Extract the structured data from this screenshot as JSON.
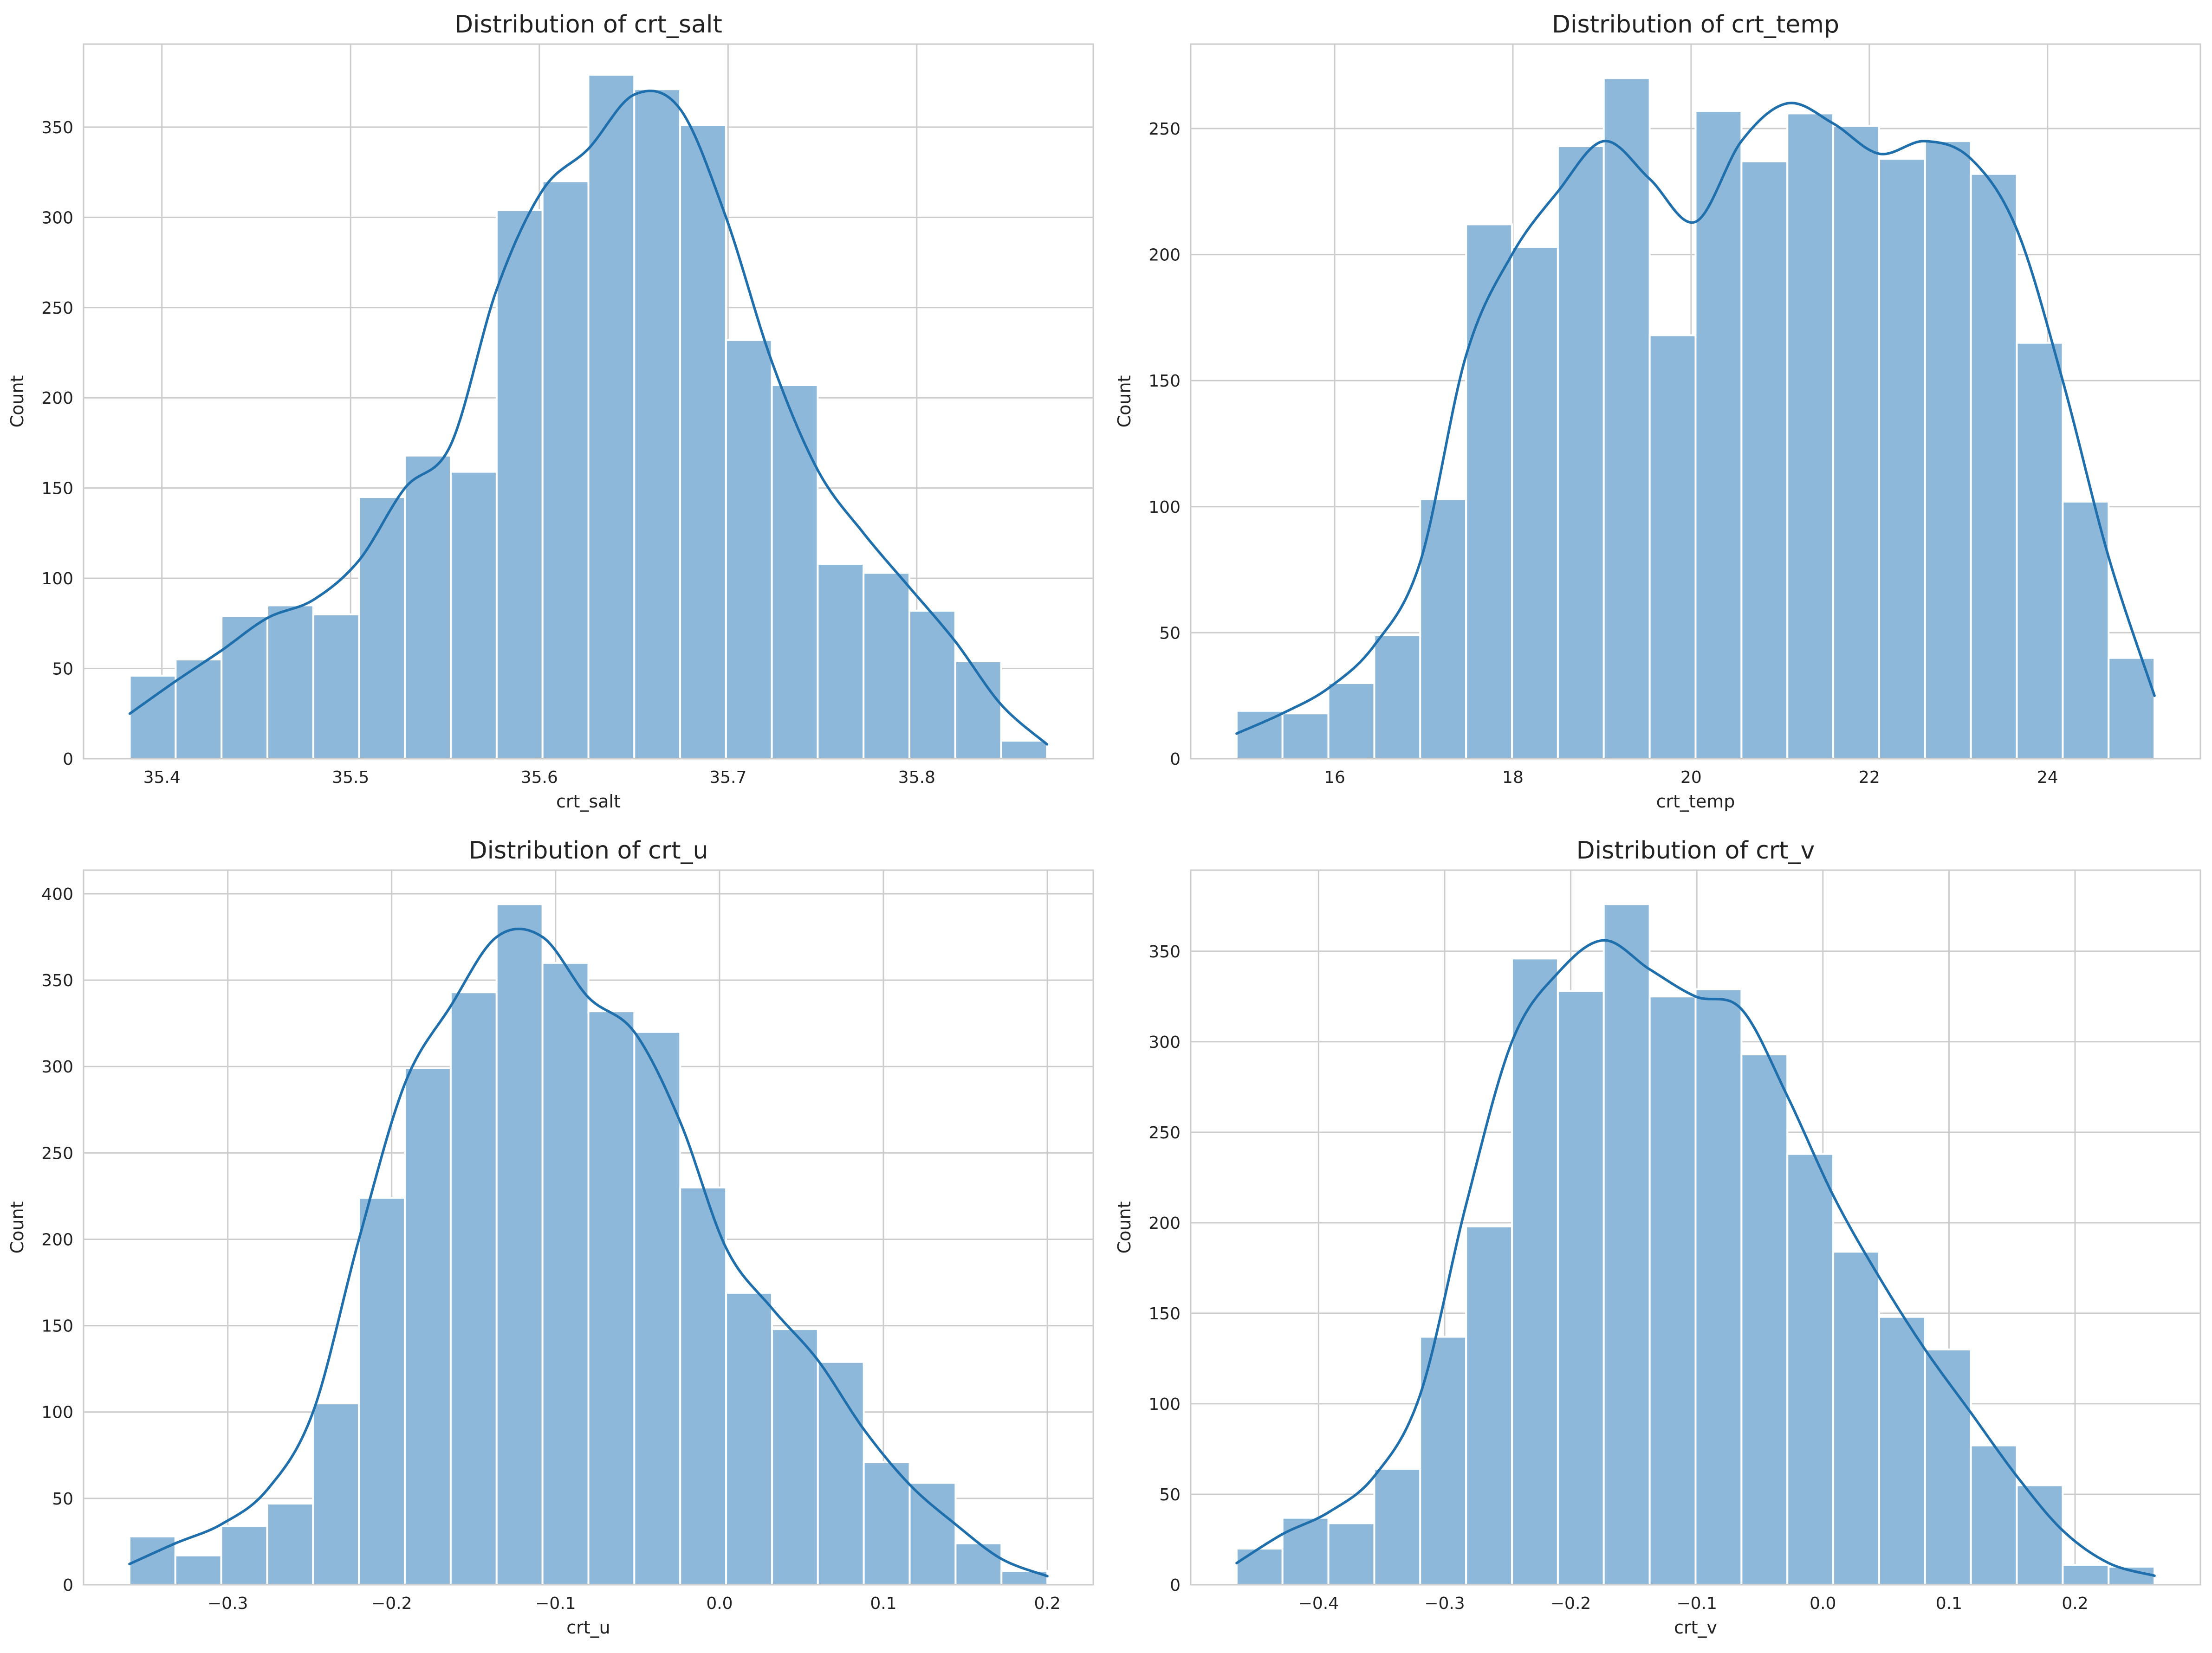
{
  "colors": {
    "bar_fill": "#8db8d9",
    "kde_line": "#1f6fad"
  },
  "chart_data": [
    {
      "type": "bar",
      "title": "Distribution of crt_salt",
      "xlabel": "crt_salt",
      "ylabel": "Count",
      "bin_edges": [
        35.383,
        35.4073,
        35.4316,
        35.4559,
        35.4802,
        35.5045,
        35.5288,
        35.5531,
        35.5774,
        35.6017,
        35.626,
        35.6503,
        35.6746,
        35.6989,
        35.7232,
        35.7475,
        35.7718,
        35.7961,
        35.8204,
        35.8447,
        35.869
      ],
      "values": [
        46,
        55,
        79,
        85,
        80,
        145,
        168,
        159,
        304,
        320,
        379,
        371,
        351,
        232,
        207,
        108,
        103,
        82,
        54,
        10
      ],
      "kde": {
        "x": [
          35.383,
          35.4073,
          35.4316,
          35.4559,
          35.4802,
          35.5045,
          35.5288,
          35.5531,
          35.5774,
          35.6017,
          35.626,
          35.6503,
          35.6746,
          35.6989,
          35.7232,
          35.7475,
          35.7718,
          35.7961,
          35.8204,
          35.8447,
          35.869
        ],
        "y": [
          25,
          43,
          60,
          78,
          88,
          110,
          150,
          174,
          260,
          315,
          338,
          368,
          360,
          300,
          220,
          160,
          125,
          95,
          65,
          30,
          8
        ]
      },
      "xticks": [
        35.4,
        35.5,
        35.6,
        35.7,
        35.8
      ],
      "xtick_labels": [
        "35.4",
        "35.5",
        "35.6",
        "35.7",
        "35.8"
      ],
      "yticks": [
        0,
        50,
        100,
        150,
        200,
        250,
        300,
        350
      ],
      "ytick_labels": [
        "0",
        "50",
        "100",
        "150",
        "200",
        "250",
        "300",
        "350"
      ],
      "xlim": [
        35.3585,
        35.8935
      ],
      "ylim": [
        0,
        396
      ],
      "grid": true
    },
    {
      "type": "bar",
      "title": "Distribution of crt_temp",
      "xlabel": "crt_temp",
      "ylabel": "Count",
      "bin_edges": [
        14.9,
        15.415,
        15.93,
        16.445,
        16.96,
        17.475,
        17.99,
        18.505,
        19.02,
        19.535,
        20.05,
        20.565,
        21.08,
        21.595,
        22.11,
        22.625,
        23.14,
        23.655,
        24.17,
        24.685,
        25.2
      ],
      "values": [
        19,
        18,
        30,
        49,
        103,
        212,
        203,
        243,
        270,
        168,
        257,
        237,
        256,
        251,
        238,
        245,
        232,
        165,
        102,
        40
      ],
      "kde": {
        "x": [
          14.9,
          15.415,
          15.93,
          16.445,
          16.96,
          17.475,
          17.99,
          18.505,
          19.02,
          19.535,
          20.05,
          20.565,
          21.08,
          21.595,
          22.11,
          22.625,
          23.14,
          23.655,
          24.17,
          24.685,
          25.2
        ],
        "y": [
          10,
          18,
          28,
          45,
          78,
          160,
          200,
          225,
          245,
          230,
          213,
          245,
          260,
          252,
          240,
          245,
          238,
          210,
          150,
          80,
          25
        ]
      },
      "xticks": [
        16,
        18,
        20,
        22,
        24
      ],
      "xtick_labels": [
        "16",
        "18",
        "20",
        "22",
        "24"
      ],
      "yticks": [
        0,
        50,
        100,
        150,
        200,
        250
      ],
      "ytick_labels": [
        "0",
        "50",
        "100",
        "150",
        "200",
        "250"
      ],
      "xlim": [
        14.385,
        25.715
      ],
      "ylim": [
        0,
        283.5
      ],
      "grid": true
    },
    {
      "type": "bar",
      "title": "Distribution of crt_u",
      "xlabel": "crt_u",
      "ylabel": "Count",
      "bin_edges": [
        -0.36,
        -0.332,
        -0.304,
        -0.276,
        -0.248,
        -0.22,
        -0.192,
        -0.164,
        -0.136,
        -0.108,
        -0.08,
        -0.052,
        -0.024,
        0.004,
        0.032,
        0.06,
        0.088,
        0.116,
        0.144,
        0.172,
        0.2
      ],
      "values": [
        28,
        17,
        34,
        47,
        105,
        224,
        299,
        343,
        394,
        360,
        332,
        320,
        230,
        169,
        148,
        129,
        71,
        59,
        24,
        8
      ],
      "kde": {
        "x": [
          -0.36,
          -0.332,
          -0.304,
          -0.276,
          -0.248,
          -0.22,
          -0.192,
          -0.164,
          -0.136,
          -0.108,
          -0.08,
          -0.052,
          -0.024,
          0.004,
          0.032,
          0.06,
          0.088,
          0.116,
          0.144,
          0.172,
          0.2
        ],
        "y": [
          12,
          24,
          35,
          55,
          100,
          200,
          290,
          335,
          375,
          375,
          340,
          320,
          268,
          195,
          160,
          130,
          90,
          58,
          35,
          15,
          5
        ]
      },
      "xticks": [
        -0.3,
        -0.2,
        -0.1,
        0.0,
        0.1,
        0.2
      ],
      "xtick_labels": [
        "−0.3",
        "−0.2",
        "−0.1",
        "0.0",
        "0.1",
        "0.2"
      ],
      "yticks": [
        0,
        50,
        100,
        150,
        200,
        250,
        300,
        350,
        400
      ],
      "ytick_labels": [
        "0",
        "50",
        "100",
        "150",
        "200",
        "250",
        "300",
        "350",
        "400"
      ],
      "xlim": [
        -0.388,
        0.228
      ],
      "ylim": [
        0,
        413.7
      ],
      "grid": true
    },
    {
      "type": "bar",
      "title": "Distribution of crt_v",
      "xlabel": "crt_v",
      "ylabel": "Count",
      "bin_edges": [
        -0.465,
        -0.4286,
        -0.3922,
        -0.3558,
        -0.3194,
        -0.283,
        -0.2466,
        -0.2102,
        -0.1738,
        -0.1374,
        -0.101,
        -0.0646,
        -0.0282,
        0.0082,
        0.0446,
        0.081,
        0.1174,
        0.1538,
        0.1902,
        0.2266,
        0.263
      ],
      "values": [
        20,
        37,
        34,
        64,
        137,
        198,
        346,
        328,
        376,
        325,
        329,
        293,
        238,
        184,
        148,
        130,
        77,
        55,
        11,
        10
      ],
      "kde": {
        "x": [
          -0.465,
          -0.4286,
          -0.3922,
          -0.3558,
          -0.3194,
          -0.283,
          -0.2466,
          -0.2102,
          -0.1738,
          -0.1374,
          -0.101,
          -0.0646,
          -0.0282,
          0.0082,
          0.0446,
          0.081,
          0.1174,
          0.1538,
          0.1902,
          0.2266,
          0.263
        ],
        "y": [
          12,
          28,
          40,
          60,
          105,
          210,
          300,
          338,
          356,
          340,
          325,
          318,
          270,
          215,
          170,
          130,
          95,
          60,
          30,
          12,
          5
        ]
      },
      "xticks": [
        -0.4,
        -0.3,
        -0.2,
        -0.1,
        0.0,
        0.1,
        0.2
      ],
      "xtick_labels": [
        "−0.4",
        "−0.3",
        "−0.2",
        "−0.1",
        "0.0",
        "0.1",
        "0.2"
      ],
      "yticks": [
        0,
        50,
        100,
        150,
        200,
        250,
        300,
        350
      ],
      "ytick_labels": [
        "0",
        "50",
        "100",
        "150",
        "200",
        "250",
        "300",
        "350"
      ],
      "xlim": [
        -0.5014,
        0.2994
      ],
      "ylim": [
        0,
        394.8
      ],
      "grid": true
    }
  ]
}
